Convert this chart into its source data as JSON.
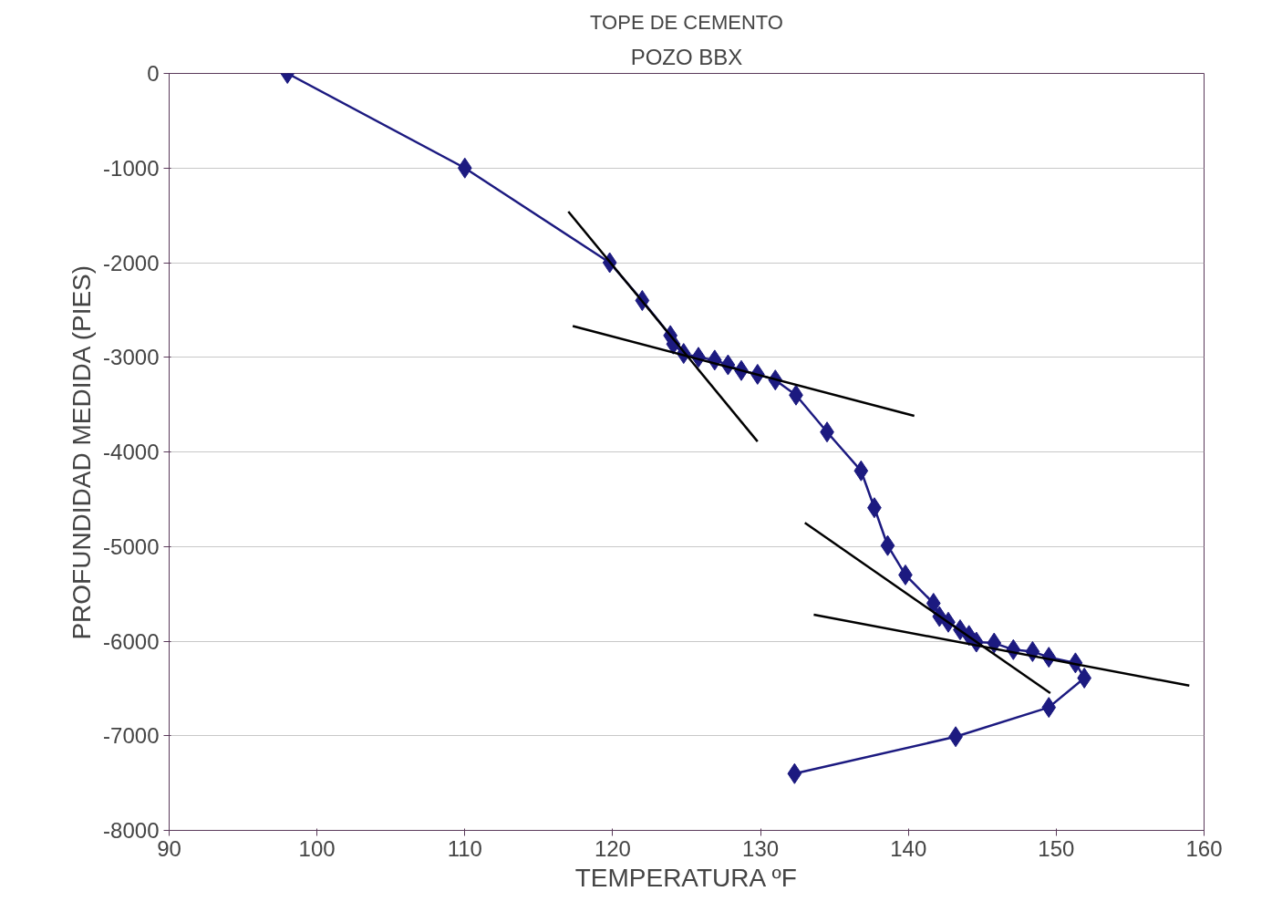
{
  "chart_data": {
    "type": "line",
    "title": "TOPE DE CEMENTO",
    "subtitle": "POZO BBX",
    "xlabel": "TEMPERATURA ºF",
    "ylabel": "PROFUNDIDAD MEDIDA (PIES)",
    "xlim": [
      90,
      160
    ],
    "xticks": [
      90,
      100,
      110,
      120,
      130,
      140,
      150,
      160
    ],
    "ylim": [
      -8000,
      0
    ],
    "yticks": [
      -8000,
      -7000,
      -6000,
      -5000,
      -4000,
      -3000,
      -2000,
      -1000,
      0
    ],
    "grid": "y",
    "marker": "diamond",
    "line_style": "solid",
    "series": [
      {
        "color": "#1c1a80",
        "x": [
          98.0,
          110.0,
          119.8,
          122.0,
          123.9,
          124.1,
          124.8,
          125.8,
          126.9,
          127.8,
          128.7,
          129.8,
          131.0,
          132.4,
          134.5,
          136.8,
          137.7,
          138.6,
          139.8,
          141.7,
          142.1,
          142.7,
          143.5,
          144.1,
          144.6,
          145.8,
          147.1,
          148.4,
          149.5,
          151.3,
          151.9,
          149.5,
          143.2,
          132.3
        ],
        "values": [
          0,
          -1000,
          -2000,
          -2400,
          -2770,
          -2860,
          -2960,
          -3000,
          -3030,
          -3080,
          -3140,
          -3180,
          -3240,
          -3400,
          -3790,
          -4200,
          -4590,
          -4990,
          -5300,
          -5600,
          -5740,
          -5800,
          -5880,
          -5940,
          -6010,
          -6020,
          -6090,
          -6110,
          -6170,
          -6230,
          -6390,
          -6700,
          -7010,
          -7400
        ]
      },
      {
        "type": "line",
        "marker": "none",
        "color": "#000000",
        "x": [
          117.0,
          129.8
        ],
        "values": [
          -1460,
          -3890
        ]
      },
      {
        "type": "line",
        "marker": "none",
        "color": "#000000",
        "x": [
          117.3,
          140.4
        ],
        "values": [
          -2670,
          -3620
        ]
      },
      {
        "type": "line",
        "marker": "none",
        "color": "#000000",
        "x": [
          133.0,
          149.6
        ],
        "values": [
          -4750,
          -6550
        ]
      },
      {
        "type": "line",
        "marker": "none",
        "color": "#000000",
        "x": [
          133.6,
          159.0
        ],
        "values": [
          -5720,
          -6470
        ]
      }
    ]
  }
}
